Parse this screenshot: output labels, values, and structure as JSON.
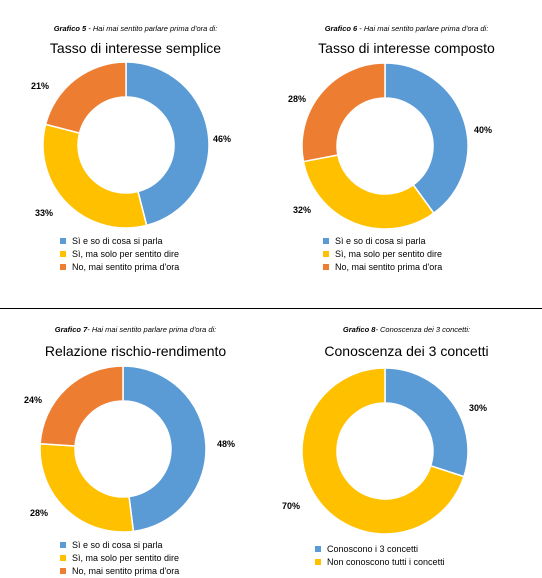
{
  "colors": {
    "blue": "#5B9BD5",
    "yellow": "#FFC000",
    "orange": "#ED7D31"
  },
  "chart_data": [
    {
      "type": "pie",
      "caption_prefix": "Grafico 5",
      "caption_text": " - Hai mai sentito parlare prima d'ora di:",
      "title": "Tasso di interesse semplice",
      "categories": [
        "Sì e so di cosa si parla",
        "Sì, ma solo per sentito dire",
        "No, mai sentito prima d'ora"
      ],
      "values": [
        46,
        33,
        21
      ],
      "labels": [
        "46%",
        "33%",
        "21%"
      ],
      "colors": [
        "#5B9BD5",
        "#FFC000",
        "#ED7D31"
      ],
      "legend_position": "bottom"
    },
    {
      "type": "pie",
      "caption_prefix": "Grafico 6",
      "caption_text": " - Hai mai sentito parlare prima d'ora di:",
      "title": "Tasso di interesse composto",
      "categories": [
        "Sì e so di cosa si parla",
        "Sì, ma solo per sentito dire",
        "No, mai sentito prima d'ora"
      ],
      "values": [
        40,
        32,
        28
      ],
      "labels": [
        "40%",
        "32%",
        "28%"
      ],
      "colors": [
        "#5B9BD5",
        "#FFC000",
        "#ED7D31"
      ],
      "legend_position": "bottom"
    },
    {
      "type": "pie",
      "caption_prefix": "Grafico 7",
      "caption_text": "- Hai mai sentito parlare prima d'ora di:",
      "title": "Relazione rischio-rendimento",
      "categories": [
        "Sì e so di cosa si parla",
        "Sì, ma solo per sentito dire",
        "No, mai sentito prima d'ora"
      ],
      "values": [
        48,
        28,
        24
      ],
      "labels": [
        "48%",
        "28%",
        "24%"
      ],
      "colors": [
        "#5B9BD5",
        "#FFC000",
        "#ED7D31"
      ],
      "legend_position": "bottom"
    },
    {
      "type": "pie",
      "caption_prefix": "Grafico 8",
      "caption_text": "- Conoscenza dei 3 concetti:",
      "title": "Conoscenza dei 3 concetti",
      "categories": [
        "Conoscono i 3 concetti",
        "Non conoscono tutti i concetti"
      ],
      "values": [
        30,
        70
      ],
      "labels": [
        "30%",
        "70%"
      ],
      "colors": [
        "#5B9BD5",
        "#FFC000"
      ],
      "legend_position": "bottom"
    }
  ]
}
